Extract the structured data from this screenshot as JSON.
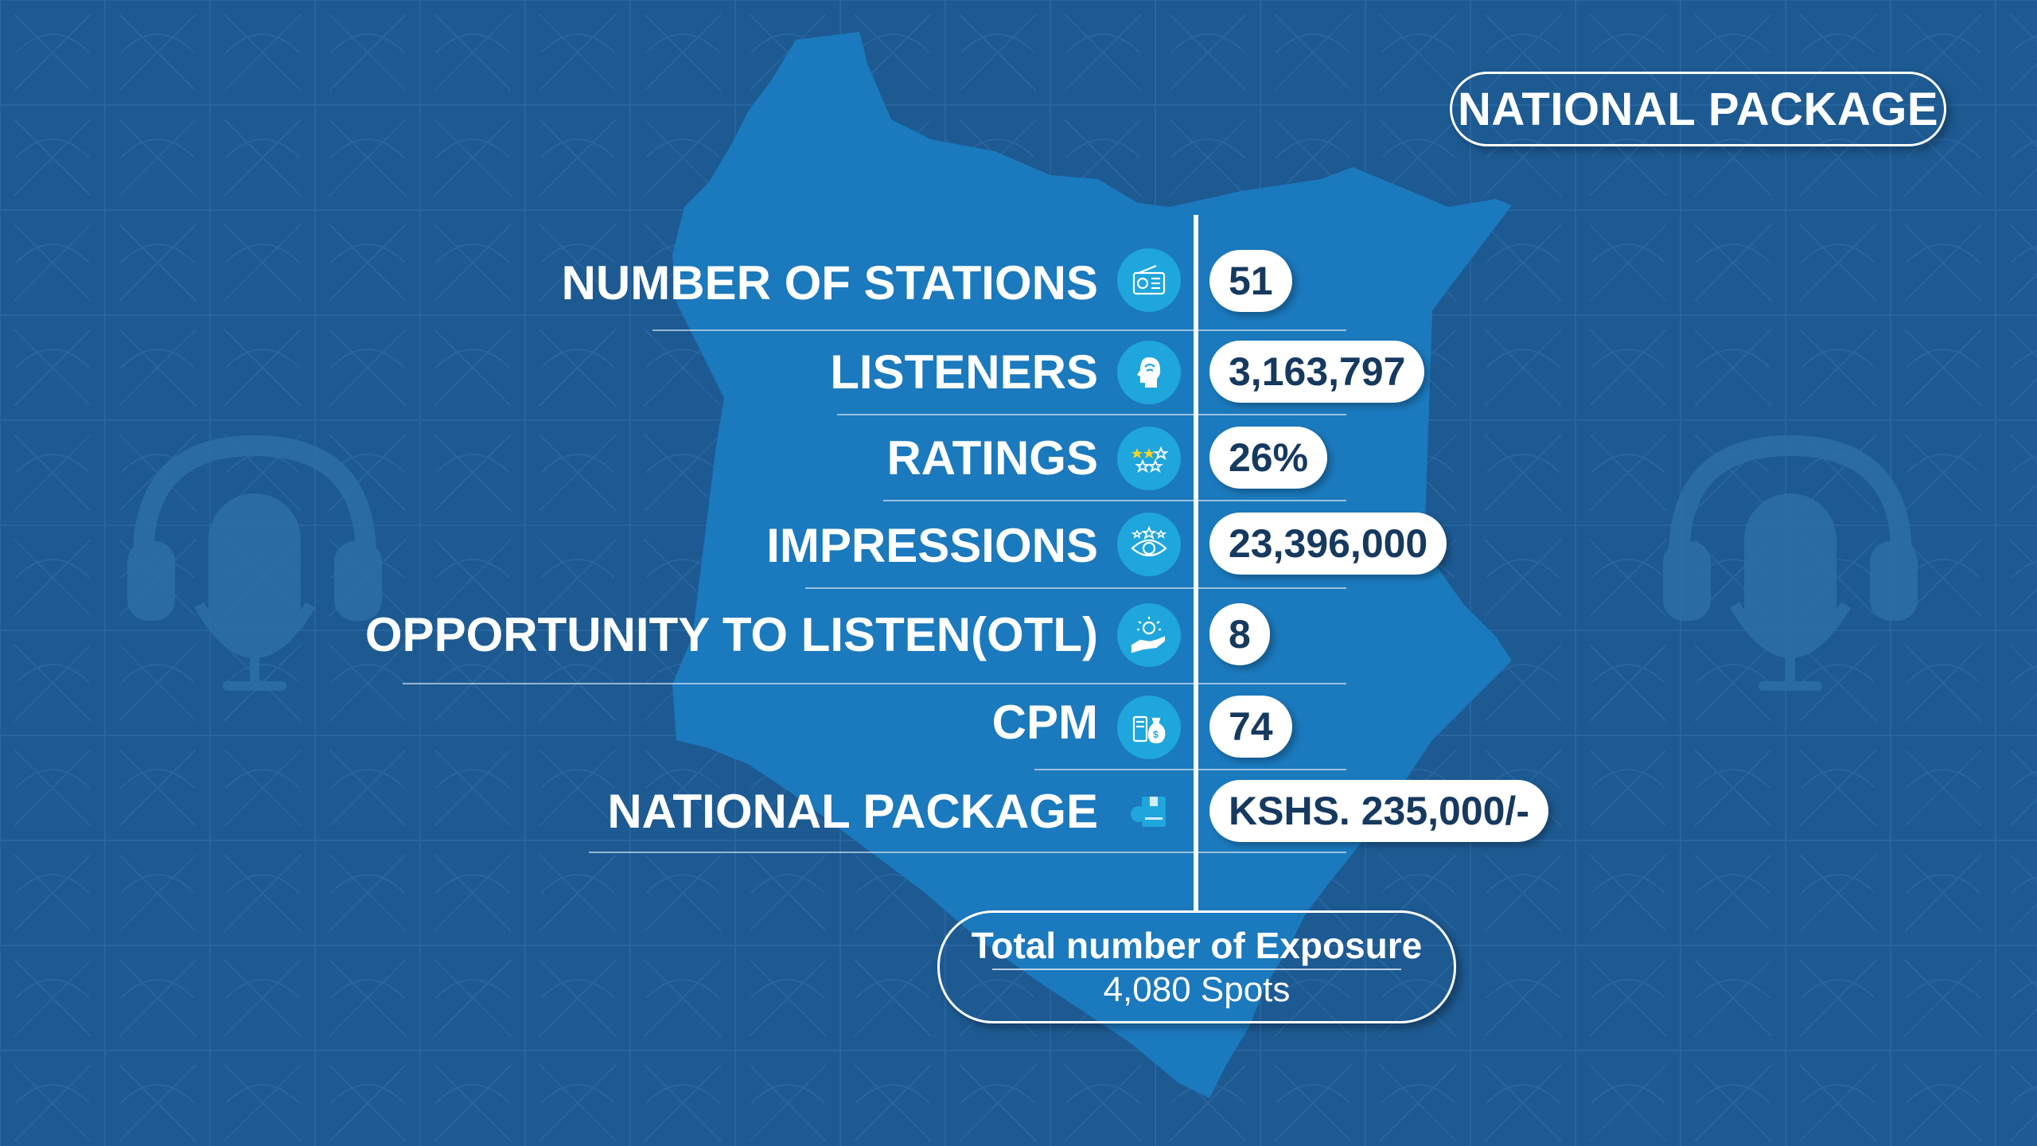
{
  "title": "NATIONAL PACKAGE",
  "colors": {
    "background": "#1d5a92",
    "map": "#1b79bd",
    "icon_circle": "#1fa6dc",
    "value_text": "#16395f",
    "star": "#f5d327"
  },
  "rows": [
    {
      "label": "NUMBER OF STATIONS",
      "value": "51",
      "icon": "radio-icon"
    },
    {
      "label": "LISTENERS",
      "value": "3,163,797",
      "icon": "listener-head-icon"
    },
    {
      "label": "RATINGS",
      "value": "26%",
      "icon": "stars-rating-icon"
    },
    {
      "label": "IMPRESSIONS",
      "value": "23,396,000",
      "icon": "eye-icon"
    },
    {
      "label": "OPPORTUNITY TO LISTEN(OTL)",
      "value": "8",
      "icon": "hand-lightbulb-icon"
    },
    {
      "label": "CPM",
      "value": "74",
      "icon": "money-bag-icon"
    },
    {
      "label": "NATIONAL PACKAGE",
      "value": "KSHS. 235,000/-",
      "icon": "package-box-icon"
    }
  ],
  "total": {
    "title": "Total number of Exposure",
    "value": "4,080 Spots"
  }
}
